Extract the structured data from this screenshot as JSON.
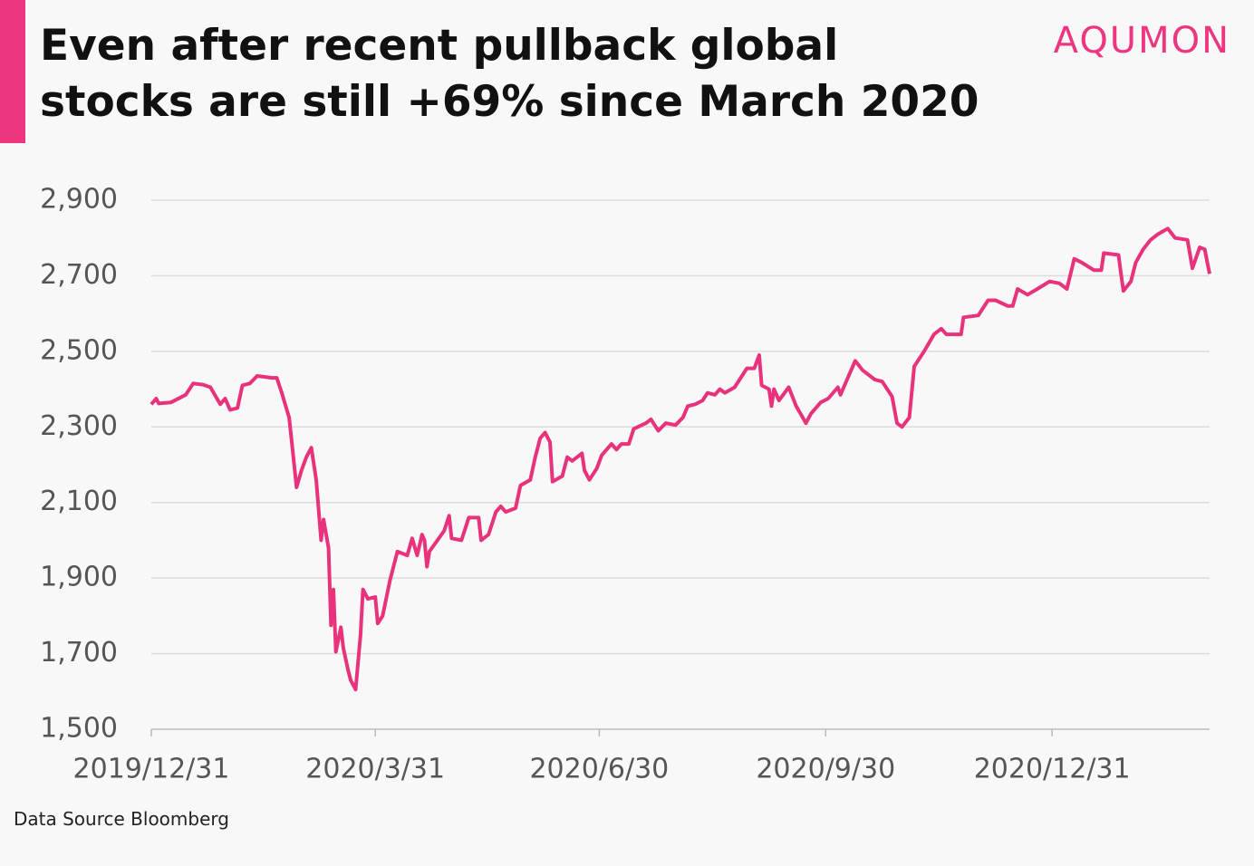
{
  "chart_data": {
    "type": "line",
    "title": "Even after recent pullback global stocks are still +69% since March 2020",
    "logo": "AQUMON",
    "source": "Data Source Bloomberg",
    "color": "#e8327c",
    "grid": true,
    "ylim": [
      1500,
      2900
    ],
    "yticks": [
      {
        "value": 1500,
        "label": "1,500"
      },
      {
        "value": 1700,
        "label": "1,700"
      },
      {
        "value": 1900,
        "label": "1,900"
      },
      {
        "value": 2100,
        "label": "2,100"
      },
      {
        "value": 2300,
        "label": "2,300"
      },
      {
        "value": 2500,
        "label": "2,500"
      },
      {
        "value": 2700,
        "label": "2,700"
      },
      {
        "value": 2900,
        "label": "2,900"
      }
    ],
    "xlim": [
      "2019/12/31",
      "2021/3/5"
    ],
    "xticks": [
      "2019/12/31",
      "2020/3/31",
      "2020/6/30",
      "2020/9/30",
      "2020/12/31"
    ],
    "x": [
      "2019/12/31",
      "2020/1/2",
      "2020/1/3",
      "2020/1/8",
      "2020/1/14",
      "2020/1/17",
      "2020/1/21",
      "2020/1/24",
      "2020/1/28",
      "2020/1/30",
      "2020/2/1",
      "2020/2/4",
      "2020/2/6",
      "2020/2/9",
      "2020/2/12",
      "2020/2/18",
      "2020/2/20",
      "2020/2/22",
      "2020/2/25",
      "2020/2/26",
      "2020/2/28",
      "2020/3/1",
      "2020/3/3",
      "2020/3/5",
      "2020/3/7",
      "2020/3/9",
      "2020/3/10",
      "2020/3/12",
      "2020/3/13",
      "2020/3/14",
      "2020/3/15",
      "2020/3/17",
      "2020/3/18",
      "2020/3/20",
      "2020/3/21",
      "2020/3/23",
      "2020/3/25",
      "2020/3/26",
      "2020/3/28",
      "2020/3/31",
      "2020/4/1",
      "2020/4/3",
      "2020/4/6",
      "2020/4/9",
      "2020/4/13",
      "2020/4/15",
      "2020/4/17",
      "2020/4/19",
      "2020/4/20",
      "2020/4/21",
      "2020/4/22",
      "2020/4/28",
      "2020/4/30",
      "2020/5/1",
      "2020/5/5",
      "2020/5/8",
      "2020/5/12",
      "2020/5/13",
      "2020/5/16",
      "2020/5/19",
      "2020/5/21",
      "2020/5/23",
      "2020/5/27",
      "2020/5/29",
      "2020/6/2",
      "2020/6/4",
      "2020/6/6",
      "2020/6/8",
      "2020/6/10",
      "2020/6/11",
      "2020/6/15",
      "2020/6/17",
      "2020/6/19",
      "2020/6/23",
      "2020/6/24",
      "2020/6/26",
      "2020/6/29",
      "2020/7/1",
      "2020/7/5",
      "2020/7/7",
      "2020/7/9",
      "2020/7/12",
      "2020/7/14",
      "2020/7/19",
      "2020/7/21",
      "2020/7/24",
      "2020/7/27",
      "2020/7/31",
      "2020/8/3",
      "2020/8/5",
      "2020/8/8",
      "2020/8/11",
      "2020/8/13",
      "2020/8/16",
      "2020/8/18",
      "2020/8/20",
      "2020/8/24",
      "2020/8/27",
      "2020/8/29",
      "2020/9/1",
      "2020/9/3",
      "2020/9/4",
      "2020/9/7",
      "2020/9/8",
      "2020/9/9",
      "2020/9/11",
      "2020/9/15",
      "2020/9/18",
      "2020/9/22",
      "2020/9/24",
      "2020/9/28",
      "2020/10/1",
      "2020/10/5",
      "2020/10/6",
      "2020/10/9",
      "2020/10/12",
      "2020/10/15",
      "2020/10/20",
      "2020/10/23",
      "2020/10/27",
      "2020/10/29",
      "2020/10/31",
      "2020/11/3",
      "2020/11/5",
      "2020/11/9",
      "2020/11/13",
      "2020/11/16",
      "2020/11/18",
      "2020/11/24",
      "2020/11/25",
      "2020/12/1",
      "2020/12/5",
      "2020/12/8",
      "2020/12/13",
      "2020/12/15",
      "2020/12/17",
      "2020/12/21",
      "2020/12/25",
      "2020/12/30",
      "2021/1/3",
      "2021/1/6",
      "2021/1/9",
      "2021/1/12",
      "2021/1/17",
      "2021/1/20",
      "2021/1/21",
      "2021/1/27",
      "2021/1/28",
      "2021/1/29",
      "2021/2/1",
      "2021/2/3",
      "2021/2/6",
      "2021/2/9",
      "2021/2/12",
      "2021/2/16",
      "2021/2/19",
      "2021/2/24",
      "2021/2/26",
      "2021/3/1",
      "2021/3/3",
      "2021/3/5"
    ],
    "values": [
      2360,
      2375,
      2362,
      2365,
      2385,
      2415,
      2412,
      2405,
      2360,
      2375,
      2345,
      2350,
      2410,
      2415,
      2435,
      2430,
      2430,
      2390,
      2325,
      2265,
      2140,
      2185,
      2220,
      2245,
      2160,
      2000,
      2055,
      1980,
      1775,
      1870,
      1705,
      1770,
      1715,
      1655,
      1630,
      1605,
      1750,
      1870,
      1845,
      1850,
      1780,
      1800,
      1895,
      1970,
      1960,
      2005,
      1960,
      2015,
      2000,
      1930,
      1970,
      2025,
      2065,
      2005,
      2000,
      2060,
      2060,
      2000,
      2015,
      2075,
      2090,
      2075,
      2085,
      2145,
      2160,
      2220,
      2270,
      2285,
      2260,
      2155,
      2170,
      2220,
      2210,
      2230,
      2185,
      2160,
      2190,
      2225,
      2255,
      2240,
      2255,
      2255,
      2295,
      2310,
      2320,
      2290,
      2310,
      2305,
      2325,
      2355,
      2360,
      2370,
      2390,
      2385,
      2400,
      2390,
      2405,
      2435,
      2455,
      2455,
      2490,
      2410,
      2400,
      2355,
      2400,
      2370,
      2405,
      2355,
      2310,
      2335,
      2365,
      2375,
      2405,
      2385,
      2430,
      2475,
      2450,
      2425,
      2420,
      2380,
      2310,
      2300,
      2325,
      2460,
      2500,
      2545,
      2560,
      2545,
      2545,
      2590,
      2595,
      2635,
      2635,
      2620,
      2620,
      2665,
      2650,
      2665,
      2685,
      2680,
      2665,
      2745,
      2735,
      2715,
      2715,
      2760,
      2755,
      2705,
      2660,
      2685,
      2735,
      2770,
      2795,
      2810,
      2825,
      2800,
      2795,
      2720,
      2775,
      2770,
      2705
    ]
  }
}
